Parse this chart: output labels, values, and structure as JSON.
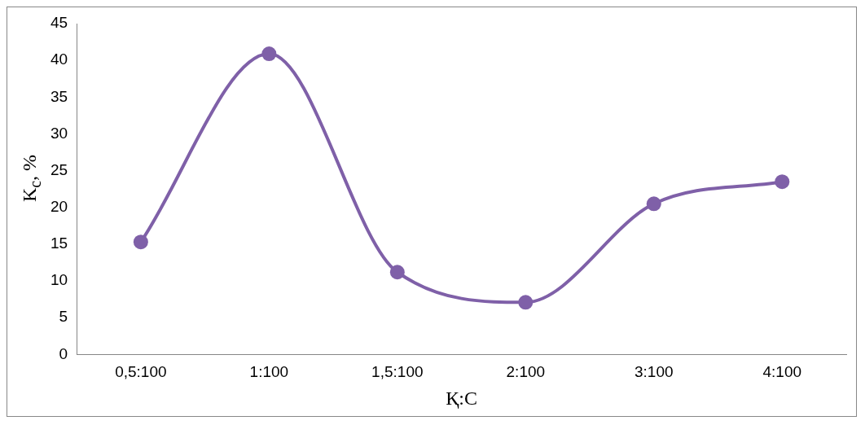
{
  "chart_data": {
    "type": "line",
    "xlabel": "Қ:С",
    "ylabel": "K$_{c}$, %",
    "categories": [
      "0,5:100",
      "1:100",
      "1,5:100",
      "2:100",
      "3:100",
      "4:100"
    ],
    "series": [
      {
        "color": "#7f60a8",
        "values": [
          15.3,
          40.9,
          11.2,
          7.1,
          20.5,
          23.5
        ]
      }
    ],
    "ylim": [
      0,
      45
    ],
    "yticks": [
      0,
      5,
      10,
      15,
      20,
      25,
      30,
      35,
      40,
      45
    ],
    "grid": false,
    "legend": false,
    "marker": "circle",
    "line_style": "solid"
  }
}
